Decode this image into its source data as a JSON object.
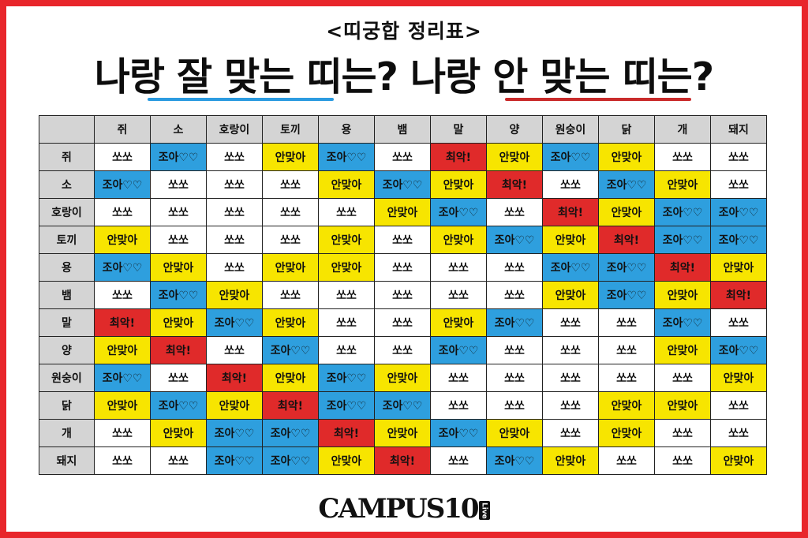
{
  "subtitle": "<띠궁합 정리표>",
  "headline": "나랑 잘 맞는 띠는? 나랑 안 맞는 띠는?",
  "colors": {
    "frame": "#e8262b",
    "ssa": "#ffffff",
    "joa": "#2e9fde",
    "an": "#f7e500",
    "choe": "#e02a2a",
    "header": "#d4d4d4",
    "underline_good": "#2c9be0",
    "underline_bad": "#c92b2b"
  },
  "table": {
    "corner": "",
    "columns": [
      "쥐",
      "소",
      "호랑이",
      "토끼",
      "용",
      "뱀",
      "말",
      "양",
      "원숭이",
      "닭",
      "개",
      "돼지"
    ],
    "rows": [
      {
        "label": "쥐",
        "cells": [
          {
            "text": "쏘쏘",
            "kind": "ssa"
          },
          {
            "text": "조아♡♡",
            "kind": "joa"
          },
          {
            "text": "쏘쏘",
            "kind": "ssa"
          },
          {
            "text": "안맞아",
            "kind": "an"
          },
          {
            "text": "조아♡♡",
            "kind": "joa"
          },
          {
            "text": "쏘쏘",
            "kind": "ssa"
          },
          {
            "text": "최악!",
            "kind": "choe"
          },
          {
            "text": "안맞아",
            "kind": "an"
          },
          {
            "text": "조아♡♡",
            "kind": "joa"
          },
          {
            "text": "안맞아",
            "kind": "an"
          },
          {
            "text": "쏘쏘",
            "kind": "ssa"
          },
          {
            "text": "쏘쏘",
            "kind": "ssa"
          }
        ]
      },
      {
        "label": "소",
        "cells": [
          {
            "text": "조아♡♡",
            "kind": "joa"
          },
          {
            "text": "쏘쏘",
            "kind": "ssa"
          },
          {
            "text": "쏘쏘",
            "kind": "ssa"
          },
          {
            "text": "쏘쏘",
            "kind": "ssa"
          },
          {
            "text": "안맞아",
            "kind": "an"
          },
          {
            "text": "조아♡♡",
            "kind": "joa"
          },
          {
            "text": "안맞아",
            "kind": "an"
          },
          {
            "text": "최악!",
            "kind": "choe"
          },
          {
            "text": "쏘쏘",
            "kind": "ssa"
          },
          {
            "text": "조아♡♡",
            "kind": "joa"
          },
          {
            "text": "안맞아",
            "kind": "an"
          },
          {
            "text": "쏘쏘",
            "kind": "ssa"
          }
        ]
      },
      {
        "label": "호랑이",
        "cells": [
          {
            "text": "쏘쏘",
            "kind": "ssa"
          },
          {
            "text": "쏘쏘",
            "kind": "ssa"
          },
          {
            "text": "쏘쏘",
            "kind": "ssa"
          },
          {
            "text": "쏘쏘",
            "kind": "ssa"
          },
          {
            "text": "쏘쏘",
            "kind": "ssa"
          },
          {
            "text": "안맞아",
            "kind": "an"
          },
          {
            "text": "조아♡♡",
            "kind": "joa"
          },
          {
            "text": "쏘쏘",
            "kind": "ssa"
          },
          {
            "text": "최악!",
            "kind": "choe"
          },
          {
            "text": "안맞아",
            "kind": "an"
          },
          {
            "text": "조아♡♡",
            "kind": "joa"
          },
          {
            "text": "조아♡♡",
            "kind": "joa"
          }
        ]
      },
      {
        "label": "토끼",
        "cells": [
          {
            "text": "안맞아",
            "kind": "an"
          },
          {
            "text": "쏘쏘",
            "kind": "ssa"
          },
          {
            "text": "쏘쏘",
            "kind": "ssa"
          },
          {
            "text": "쏘쏘",
            "kind": "ssa"
          },
          {
            "text": "안맞아",
            "kind": "an"
          },
          {
            "text": "쏘쏘",
            "kind": "ssa"
          },
          {
            "text": "안맞아",
            "kind": "an"
          },
          {
            "text": "조아♡♡",
            "kind": "joa"
          },
          {
            "text": "안맞아",
            "kind": "an"
          },
          {
            "text": "최악!",
            "kind": "choe"
          },
          {
            "text": "조아♡♡",
            "kind": "joa"
          },
          {
            "text": "조아♡♡",
            "kind": "joa"
          }
        ]
      },
      {
        "label": "용",
        "cells": [
          {
            "text": "조아♡♡",
            "kind": "joa"
          },
          {
            "text": "안맞아",
            "kind": "an"
          },
          {
            "text": "쏘쏘",
            "kind": "ssa"
          },
          {
            "text": "안맞아",
            "kind": "an"
          },
          {
            "text": "안맞아",
            "kind": "an"
          },
          {
            "text": "쏘쏘",
            "kind": "ssa"
          },
          {
            "text": "쏘쏘",
            "kind": "ssa"
          },
          {
            "text": "쏘쏘",
            "kind": "ssa"
          },
          {
            "text": "조아♡♡",
            "kind": "joa"
          },
          {
            "text": "조아♡♡",
            "kind": "joa"
          },
          {
            "text": "최악!",
            "kind": "choe"
          },
          {
            "text": "안맞아",
            "kind": "an"
          }
        ]
      },
      {
        "label": "뱀",
        "cells": [
          {
            "text": "쏘쏘",
            "kind": "ssa"
          },
          {
            "text": "조아♡♡",
            "kind": "joa"
          },
          {
            "text": "안맞아",
            "kind": "an"
          },
          {
            "text": "쏘쏘",
            "kind": "ssa"
          },
          {
            "text": "쏘쏘",
            "kind": "ssa"
          },
          {
            "text": "쏘쏘",
            "kind": "ssa"
          },
          {
            "text": "쏘쏘",
            "kind": "ssa"
          },
          {
            "text": "쏘쏘",
            "kind": "ssa"
          },
          {
            "text": "안맞아",
            "kind": "an"
          },
          {
            "text": "조아♡♡",
            "kind": "joa"
          },
          {
            "text": "안맞아",
            "kind": "an"
          },
          {
            "text": "최악!",
            "kind": "choe"
          }
        ]
      },
      {
        "label": "말",
        "cells": [
          {
            "text": "최악!",
            "kind": "choe"
          },
          {
            "text": "안맞아",
            "kind": "an"
          },
          {
            "text": "조아♡♡",
            "kind": "joa"
          },
          {
            "text": "안맞아",
            "kind": "an"
          },
          {
            "text": "쏘쏘",
            "kind": "ssa"
          },
          {
            "text": "쏘쏘",
            "kind": "ssa"
          },
          {
            "text": "안맞아",
            "kind": "an"
          },
          {
            "text": "조아♡♡",
            "kind": "joa"
          },
          {
            "text": "쏘쏘",
            "kind": "ssa"
          },
          {
            "text": "쏘쏘",
            "kind": "ssa"
          },
          {
            "text": "조아♡♡",
            "kind": "joa"
          },
          {
            "text": "쏘쏘",
            "kind": "ssa"
          }
        ]
      },
      {
        "label": "양",
        "cells": [
          {
            "text": "안맞아",
            "kind": "an"
          },
          {
            "text": "최악!",
            "kind": "choe"
          },
          {
            "text": "쏘쏘",
            "kind": "ssa"
          },
          {
            "text": "조아♡♡",
            "kind": "joa"
          },
          {
            "text": "쏘쏘",
            "kind": "ssa"
          },
          {
            "text": "쏘쏘",
            "kind": "ssa"
          },
          {
            "text": "조아♡♡",
            "kind": "joa"
          },
          {
            "text": "쏘쏘",
            "kind": "ssa"
          },
          {
            "text": "쏘쏘",
            "kind": "ssa"
          },
          {
            "text": "쏘쏘",
            "kind": "ssa"
          },
          {
            "text": "안맞아",
            "kind": "an"
          },
          {
            "text": "조아♡♡",
            "kind": "joa"
          }
        ]
      },
      {
        "label": "원숭이",
        "cells": [
          {
            "text": "조아♡♡",
            "kind": "joa"
          },
          {
            "text": "쏘쏘",
            "kind": "ssa"
          },
          {
            "text": "최악!",
            "kind": "choe"
          },
          {
            "text": "안맞아",
            "kind": "an"
          },
          {
            "text": "조아♡♡",
            "kind": "joa"
          },
          {
            "text": "안맞아",
            "kind": "an"
          },
          {
            "text": "쏘쏘",
            "kind": "ssa"
          },
          {
            "text": "쏘쏘",
            "kind": "ssa"
          },
          {
            "text": "쏘쏘",
            "kind": "ssa"
          },
          {
            "text": "쏘쏘",
            "kind": "ssa"
          },
          {
            "text": "쏘쏘",
            "kind": "ssa"
          },
          {
            "text": "안맞아",
            "kind": "an"
          }
        ]
      },
      {
        "label": "닭",
        "cells": [
          {
            "text": "안맞아",
            "kind": "an"
          },
          {
            "text": "조아♡♡",
            "kind": "joa"
          },
          {
            "text": "안맞아",
            "kind": "an"
          },
          {
            "text": "최악!",
            "kind": "choe"
          },
          {
            "text": "조아♡♡",
            "kind": "joa"
          },
          {
            "text": "조아♡♡",
            "kind": "joa"
          },
          {
            "text": "쏘쏘",
            "kind": "ssa"
          },
          {
            "text": "쏘쏘",
            "kind": "ssa"
          },
          {
            "text": "쏘쏘",
            "kind": "ssa"
          },
          {
            "text": "안맞아",
            "kind": "an"
          },
          {
            "text": "안맞아",
            "kind": "an"
          },
          {
            "text": "쏘쏘",
            "kind": "ssa"
          }
        ]
      },
      {
        "label": "개",
        "cells": [
          {
            "text": "쏘쏘",
            "kind": "ssa"
          },
          {
            "text": "안맞아",
            "kind": "an"
          },
          {
            "text": "조아♡♡",
            "kind": "joa"
          },
          {
            "text": "조아♡♡",
            "kind": "joa"
          },
          {
            "text": "최악!",
            "kind": "choe"
          },
          {
            "text": "안맞아",
            "kind": "an"
          },
          {
            "text": "조아♡♡",
            "kind": "joa"
          },
          {
            "text": "안맞아",
            "kind": "an"
          },
          {
            "text": "쏘쏘",
            "kind": "ssa"
          },
          {
            "text": "안맞아",
            "kind": "an"
          },
          {
            "text": "쏘쏘",
            "kind": "ssa"
          },
          {
            "text": "쏘쏘",
            "kind": "ssa"
          }
        ]
      },
      {
        "label": "돼지",
        "cells": [
          {
            "text": "쏘쏘",
            "kind": "ssa"
          },
          {
            "text": "쏘쏘",
            "kind": "ssa"
          },
          {
            "text": "조아♡♡",
            "kind": "joa"
          },
          {
            "text": "조아♡♡",
            "kind": "joa"
          },
          {
            "text": "안맞아",
            "kind": "an"
          },
          {
            "text": "최악!",
            "kind": "choe"
          },
          {
            "text": "쏘쏘",
            "kind": "ssa"
          },
          {
            "text": "조아♡♡",
            "kind": "joa"
          },
          {
            "text": "안맞아",
            "kind": "an"
          },
          {
            "text": "쏘쏘",
            "kind": "ssa"
          },
          {
            "text": "쏘쏘",
            "kind": "ssa"
          },
          {
            "text": "안맞아",
            "kind": "an"
          }
        ]
      }
    ]
  },
  "logo": {
    "text": "CAMPUS10",
    "badge": "Live"
  }
}
